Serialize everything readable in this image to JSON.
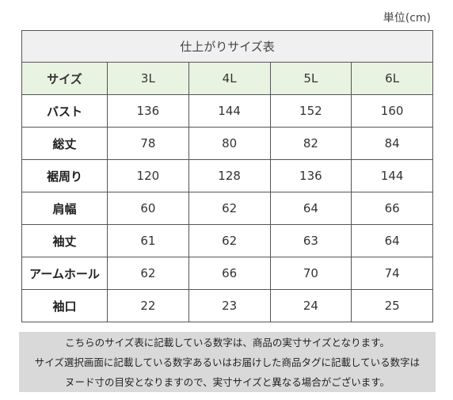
{
  "unit_label": "単位(cm)",
  "table": {
    "title": "仕上がりサイズ表",
    "header": {
      "label": "サイズ",
      "sizes": [
        "3L",
        "4L",
        "5L",
        "6L"
      ]
    },
    "rows": [
      {
        "label": "バスト",
        "values": [
          "136",
          "144",
          "152",
          "160"
        ]
      },
      {
        "label": "総丈",
        "values": [
          "78",
          "80",
          "82",
          "84"
        ]
      },
      {
        "label": "裾周り",
        "values": [
          "120",
          "128",
          "136",
          "144"
        ]
      },
      {
        "label": "肩幅",
        "values": [
          "60",
          "62",
          "64",
          "66"
        ]
      },
      {
        "label": "袖丈",
        "values": [
          "61",
          "62",
          "63",
          "64"
        ]
      },
      {
        "label": "アームホール",
        "values": [
          "62",
          "66",
          "70",
          "74"
        ]
      },
      {
        "label": "袖口",
        "values": [
          "22",
          "23",
          "24",
          "25"
        ]
      }
    ]
  },
  "note": {
    "lines": [
      "こちらのサイズ表に記載している数字は、商品の実寸サイズとなります。",
      "サイズ選択画面に記載している数字あるいはお届けした商品タグに記載している数字は",
      "ヌード寸の目安となりますので、実寸サイズと異なる場合がございます。"
    ]
  }
}
